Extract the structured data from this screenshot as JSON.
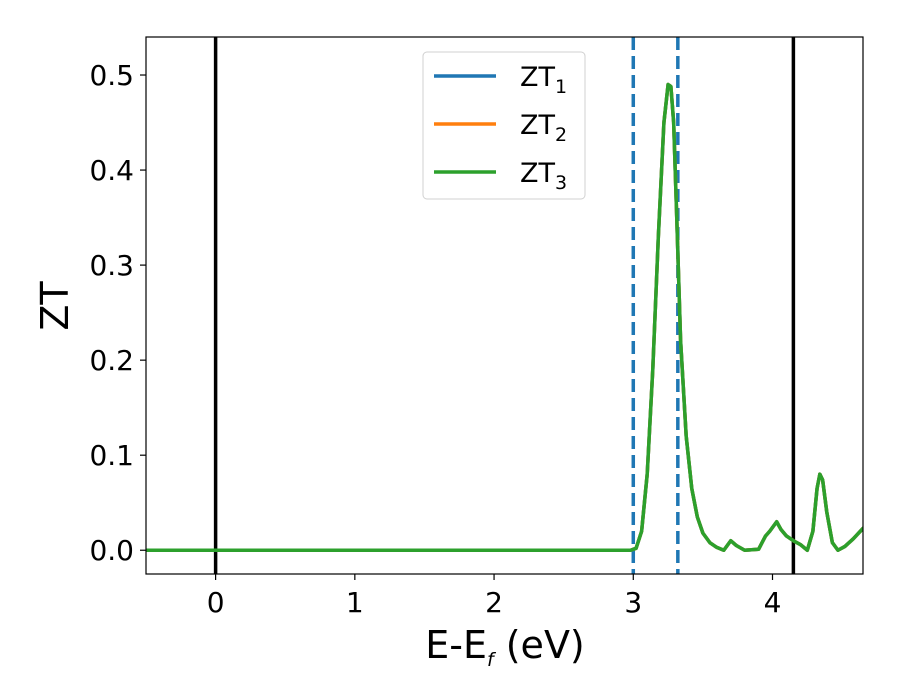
{
  "chart_data": {
    "type": "line",
    "title": "",
    "xlabel": {
      "main": "E-E",
      "sub": "f",
      "unit": " (eV)"
    },
    "ylabel": "ZT",
    "xlim": [
      -0.5,
      4.65
    ],
    "ylim": [
      -0.025,
      0.54
    ],
    "xticks": [
      0,
      1,
      2,
      3,
      4
    ],
    "xtick_labels": [
      "0",
      "1",
      "2",
      "3",
      "4"
    ],
    "yticks": [
      0.0,
      0.1,
      0.2,
      0.3,
      0.4,
      0.5
    ],
    "ytick_labels": [
      "0.0",
      "0.1",
      "0.2",
      "0.3",
      "0.4",
      "0.5"
    ],
    "grid": false,
    "legend_position": "upper-center",
    "vlines": [
      {
        "x": 0.0,
        "style": "solid",
        "color": "#000000"
      },
      {
        "x": 4.15,
        "style": "solid",
        "color": "#000000"
      },
      {
        "x": 3.0,
        "style": "dashed",
        "color": "#1f77b4"
      },
      {
        "x": 3.32,
        "style": "dashed",
        "color": "#1f77b4"
      }
    ],
    "x": [
      -0.5,
      2.98,
      3.02,
      3.06,
      3.1,
      3.14,
      3.18,
      3.22,
      3.25,
      3.27,
      3.29,
      3.31,
      3.34,
      3.38,
      3.42,
      3.46,
      3.5,
      3.55,
      3.6,
      3.65,
      3.7,
      3.74,
      3.8,
      3.9,
      3.95,
      3.98,
      4.03,
      4.06,
      4.1,
      4.15,
      4.2,
      4.25,
      4.29,
      4.32,
      4.34,
      4.36,
      4.39,
      4.43,
      4.47,
      4.52,
      4.58,
      4.65
    ],
    "series": [
      {
        "name": {
          "main": "ZT",
          "sub": "1"
        },
        "color": "#1f77b4",
        "y": [
          0.0,
          0.0,
          0.002,
          0.02,
          0.08,
          0.19,
          0.33,
          0.45,
          0.49,
          0.488,
          0.45,
          0.36,
          0.22,
          0.12,
          0.065,
          0.035,
          0.018,
          0.008,
          0.003,
          0.0,
          0.01,
          0.005,
          0.0,
          0.001,
          0.015,
          0.02,
          0.03,
          0.022,
          0.015,
          0.01,
          0.006,
          0.0,
          0.02,
          0.065,
          0.08,
          0.074,
          0.04,
          0.008,
          0.0,
          0.004,
          0.012,
          0.023
        ]
      },
      {
        "name": {
          "main": "ZT",
          "sub": "2"
        },
        "color": "#ff7f0e",
        "y": [
          0.0,
          0.0,
          0.002,
          0.02,
          0.08,
          0.19,
          0.33,
          0.45,
          0.49,
          0.488,
          0.45,
          0.36,
          0.22,
          0.12,
          0.065,
          0.035,
          0.018,
          0.008,
          0.003,
          0.0,
          0.01,
          0.005,
          0.0,
          0.001,
          0.015,
          0.02,
          0.03,
          0.022,
          0.015,
          0.01,
          0.006,
          0.0,
          0.02,
          0.065,
          0.08,
          0.074,
          0.04,
          0.008,
          0.0,
          0.004,
          0.012,
          0.023
        ]
      },
      {
        "name": {
          "main": "ZT",
          "sub": "3"
        },
        "color": "#2ca02c",
        "y": [
          0.0,
          0.0,
          0.002,
          0.02,
          0.08,
          0.19,
          0.33,
          0.45,
          0.49,
          0.488,
          0.45,
          0.36,
          0.22,
          0.12,
          0.065,
          0.035,
          0.018,
          0.008,
          0.003,
          0.0,
          0.01,
          0.005,
          0.0,
          0.001,
          0.015,
          0.02,
          0.03,
          0.022,
          0.015,
          0.01,
          0.006,
          0.0,
          0.02,
          0.065,
          0.08,
          0.074,
          0.04,
          0.008,
          0.0,
          0.004,
          0.012,
          0.023
        ]
      }
    ]
  }
}
